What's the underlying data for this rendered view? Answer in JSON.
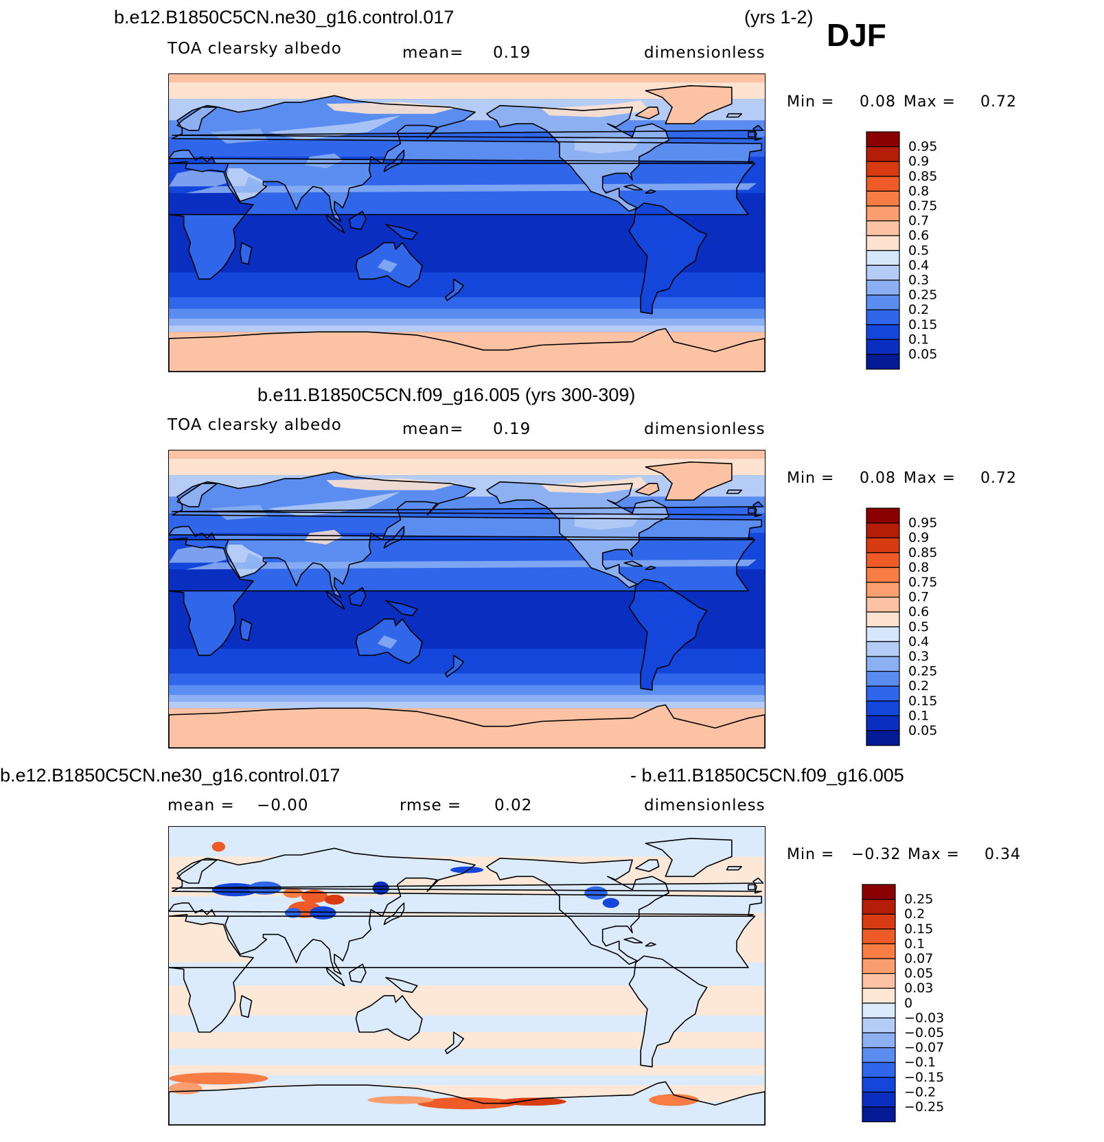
{
  "header": {
    "case1_title": "b.e12.B1850C5CN.ne30_g16.control.017",
    "case1_years": "(yrs 1-2)",
    "season": "DJF"
  },
  "panels": [
    {
      "variable": "TOA clearsky albedo",
      "mean_label": "mean=",
      "mean_value": "0.19",
      "units": "dimensionless",
      "min_label": "Min =",
      "min_value": "0.08",
      "max_label": "Max =",
      "max_value": "0.72"
    },
    {
      "title": "b.e11.B1850C5CN.f09_g16.005 (yrs 300-309)",
      "variable": "TOA clearsky albedo",
      "mean_label": "mean=",
      "mean_value": "0.19",
      "units": "dimensionless",
      "min_label": "Min =",
      "min_value": "0.08",
      "max_label": "Max =",
      "max_value": "0.72"
    },
    {
      "title_left": "b.e12.B1850C5CN.ne30_g16.control.017",
      "title_right": "- b.e11.B1850C5CN.f09_g16.005",
      "mean_label": "mean =",
      "mean_value": "−0.00",
      "rmse_label": "rmse =",
      "rmse_value": "0.02",
      "units": "dimensionless",
      "min_label": "Min =",
      "min_value": "−0.32",
      "max_label": "Max =",
      "max_value": "0.34"
    }
  ],
  "colorbars": {
    "abs": {
      "labels": [
        "0.95",
        "0.9",
        "0.85",
        "0.8",
        "0.75",
        "0.7",
        "0.6",
        "0.5",
        "0.4",
        "0.3",
        "0.25",
        "0.2",
        "0.15",
        "0.1",
        "0.05"
      ],
      "colors": [
        "#8b0000",
        "#b41e08",
        "#d83a12",
        "#ee5a28",
        "#f77d45",
        "#fa9e70",
        "#fcc2a4",
        "#fde2cf",
        "#d6e6fb",
        "#b5cdf6",
        "#8cb0f2",
        "#5b8cf0",
        "#2f66ea",
        "#1446dc",
        "#0a2fc0",
        "#051b96"
      ]
    },
    "diff": {
      "labels": [
        "0.25",
        "0.2",
        "0.15",
        "0.1",
        "0.07",
        "0.05",
        "0.03",
        "0",
        "−0.03",
        "−0.05",
        "−0.07",
        "−0.1",
        "−0.15",
        "−0.2",
        "−0.25"
      ],
      "colors": [
        "#8b0000",
        "#b41e08",
        "#d83a12",
        "#ee5a28",
        "#f77d45",
        "#fa9e70",
        "#fcc2a4",
        "#fde8d8",
        "#dcebfb",
        "#b5cdf6",
        "#8cb0f2",
        "#5b8cf0",
        "#2f66ea",
        "#1446dc",
        "#0a2fc0",
        "#051b96"
      ]
    }
  },
  "chart_data": [
    {
      "type": "heatmap",
      "title": "b.e12.B1850C5CN.ne30_g16.control.017 (yrs 1-2) DJF",
      "variable": "TOA clearsky albedo",
      "units": "dimensionless",
      "mean": 0.19,
      "min": 0.08,
      "max": 0.72,
      "contour_levels": [
        0.05,
        0.1,
        0.15,
        0.2,
        0.25,
        0.3,
        0.4,
        0.5,
        0.6,
        0.7,
        0.75,
        0.8,
        0.85,
        0.9,
        0.95
      ],
      "x": "longitude 0-360",
      "y": "latitude -90 to 90"
    },
    {
      "type": "heatmap",
      "title": "b.e11.B1850C5CN.f09_g16.005 (yrs 300-309)",
      "variable": "TOA clearsky albedo",
      "units": "dimensionless",
      "mean": 0.19,
      "min": 0.08,
      "max": 0.72,
      "contour_levels": [
        0.05,
        0.1,
        0.15,
        0.2,
        0.25,
        0.3,
        0.4,
        0.5,
        0.6,
        0.7,
        0.75,
        0.8,
        0.85,
        0.9,
        0.95
      ],
      "x": "longitude 0-360",
      "y": "latitude -90 to 90"
    },
    {
      "type": "heatmap",
      "title": "b.e12.B1850C5CN.ne30_g16.control.017 - b.e11.B1850C5CN.f09_g16.005",
      "units": "dimensionless",
      "mean": -0.0,
      "rmse": 0.02,
      "min": -0.32,
      "max": 0.34,
      "contour_levels": [
        -0.25,
        -0.2,
        -0.15,
        -0.1,
        -0.07,
        -0.05,
        -0.03,
        0,
        0.03,
        0.05,
        0.07,
        0.1,
        0.15,
        0.2,
        0.25
      ],
      "x": "longitude 0-360",
      "y": "latitude -90 to 90"
    }
  ]
}
